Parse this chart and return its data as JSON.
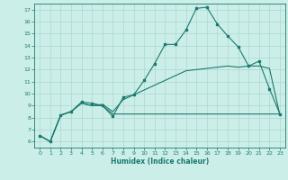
{
  "xlabel": "Humidex (Indice chaleur)",
  "xlim": [
    -0.5,
    23.5
  ],
  "ylim": [
    5.5,
    17.5
  ],
  "yticks": [
    6,
    7,
    8,
    9,
    10,
    11,
    12,
    13,
    14,
    15,
    16,
    17
  ],
  "xticks": [
    0,
    1,
    2,
    3,
    4,
    5,
    6,
    7,
    8,
    9,
    10,
    11,
    12,
    13,
    14,
    15,
    16,
    17,
    18,
    19,
    20,
    21,
    22,
    23
  ],
  "line1_x": [
    0,
    1,
    2,
    3,
    4,
    5,
    6,
    7,
    8,
    9,
    10,
    11,
    12,
    13,
    14,
    15,
    16,
    17,
    18,
    19,
    20,
    21,
    22,
    23
  ],
  "line1_y": [
    6.5,
    6.0,
    8.2,
    8.5,
    9.3,
    9.2,
    9.0,
    8.1,
    9.7,
    9.9,
    11.1,
    12.5,
    14.1,
    14.1,
    15.3,
    17.1,
    17.2,
    15.8,
    14.8,
    13.9,
    12.3,
    12.7,
    10.4,
    8.3
  ],
  "line2_x": [
    0,
    1,
    2,
    3,
    4,
    5,
    6,
    7,
    8,
    9,
    10,
    11,
    12,
    13,
    14,
    15,
    16,
    17,
    18,
    19,
    20,
    21,
    22,
    23
  ],
  "line2_y": [
    6.5,
    6.0,
    8.2,
    8.5,
    9.2,
    9.0,
    9.0,
    8.3,
    8.3,
    8.3,
    8.3,
    8.3,
    8.3,
    8.3,
    8.3,
    8.3,
    8.3,
    8.3,
    8.3,
    8.3,
    8.3,
    8.3,
    8.3,
    8.3
  ],
  "line3_x": [
    0,
    1,
    2,
    3,
    4,
    5,
    6,
    7,
    8,
    9,
    10,
    11,
    12,
    13,
    14,
    15,
    16,
    17,
    18,
    19,
    20,
    21,
    22,
    23
  ],
  "line3_y": [
    6.5,
    6.0,
    8.2,
    8.5,
    9.2,
    9.0,
    9.1,
    8.5,
    9.5,
    9.9,
    10.3,
    10.7,
    11.1,
    11.5,
    11.9,
    12.0,
    12.1,
    12.2,
    12.3,
    12.2,
    12.3,
    12.3,
    12.1,
    8.2
  ],
  "line_color": "#1a7a6e",
  "bg_color": "#cceee8",
  "grid_color": "#aad8d0"
}
